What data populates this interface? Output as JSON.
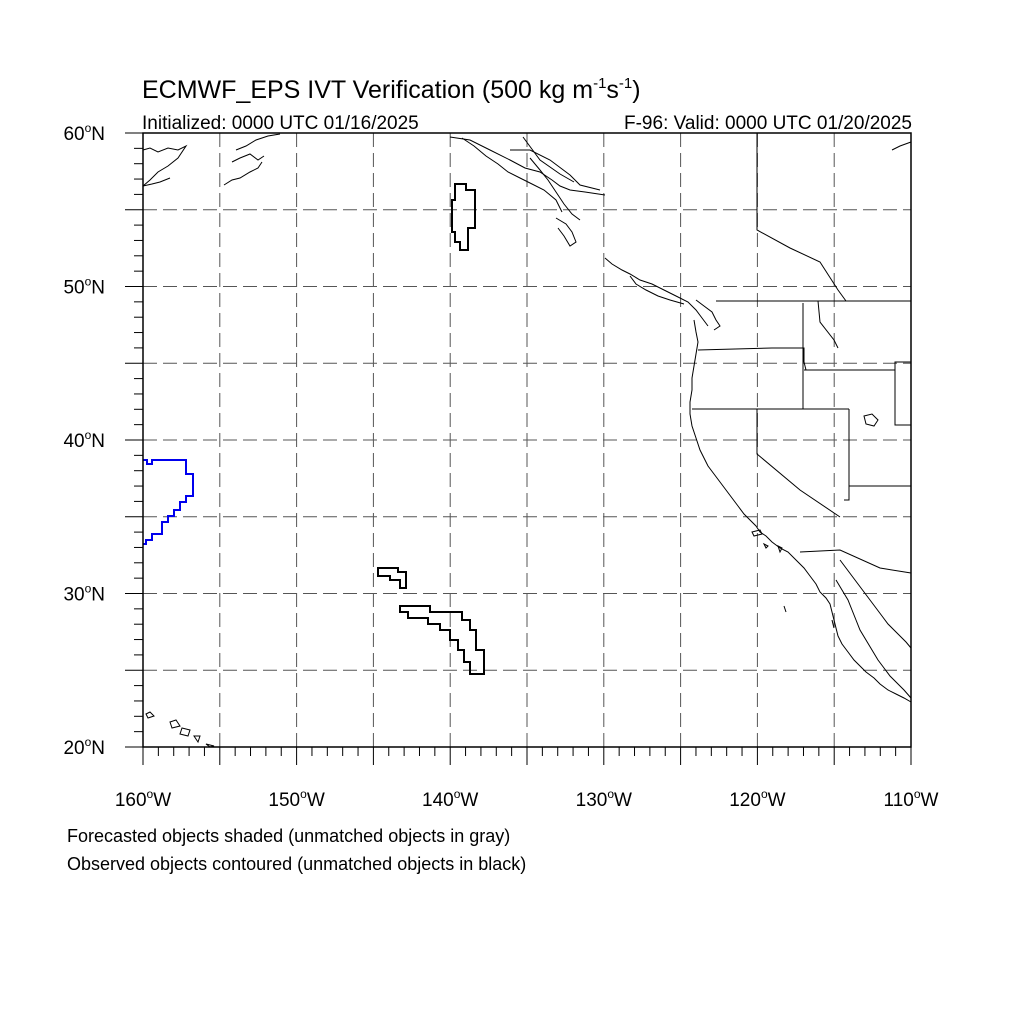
{
  "title": {
    "main": "ECMWF_EPS IVT Verification (500 kg m",
    "sup1": "-1",
    "mid": "s",
    "sup2": "-1",
    "end": ")"
  },
  "initialized": "Initialized: 0000 UTC 01/16/2025",
  "valid": "F-96: Valid: 0000 UTC 01/20/2025",
  "lat_labels": [
    {
      "deg": "60",
      "hemi": "N",
      "value": 60
    },
    {
      "deg": "50",
      "hemi": "N",
      "value": 50
    },
    {
      "deg": "40",
      "hemi": "N",
      "value": 40
    },
    {
      "deg": "30",
      "hemi": "N",
      "value": 30
    },
    {
      "deg": "20",
      "hemi": "N",
      "value": 20
    }
  ],
  "lon_labels": [
    {
      "deg": "160",
      "hemi": "W",
      "value": -160
    },
    {
      "deg": "150",
      "hemi": "W",
      "value": -150
    },
    {
      "deg": "140",
      "hemi": "W",
      "value": -140
    },
    {
      "deg": "130",
      "hemi": "W",
      "value": -130
    },
    {
      "deg": "120",
      "hemi": "W",
      "value": -120
    },
    {
      "deg": "110",
      "hemi": "W",
      "value": -110
    }
  ],
  "extent": {
    "lon_min": -160,
    "lon_max": -110,
    "lat_min": 20,
    "lat_max": 60
  },
  "grid": {
    "dashed": true,
    "lon_step": 5,
    "lat_step": 5
  },
  "legend_notes": [
    "Forecasted objects shaded (unmatched objects in gray)",
    "Observed objects contoured (unmatched objects in black)"
  ],
  "colors": {
    "matched_observed": "#0000ee",
    "unmatched_observed": "#000000",
    "coastline": "#000000"
  }
}
